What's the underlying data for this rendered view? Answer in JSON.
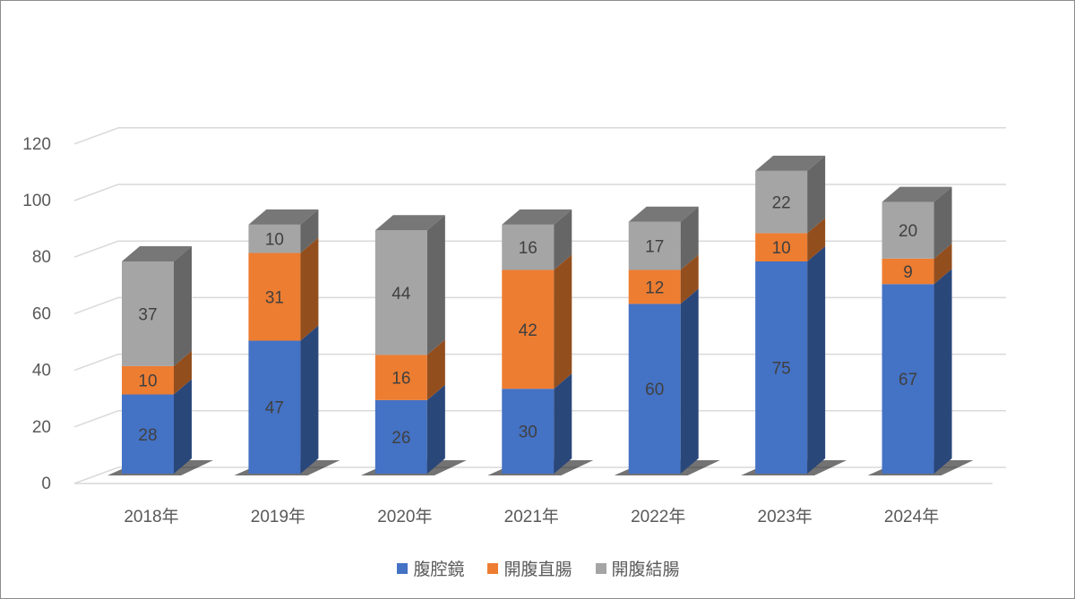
{
  "chart_data": {
    "type": "bar",
    "stacked": true,
    "three_d": true,
    "categories": [
      "2018年",
      "2019年",
      "2020年",
      "2021年",
      "2022年",
      "2023年",
      "2024年"
    ],
    "series": [
      {
        "name": "腹腔鏡",
        "color": "#4472C4",
        "values": [
          28,
          47,
          26,
          30,
          60,
          75,
          67
        ]
      },
      {
        "name": "開腹直腸",
        "color": "#ED7D31",
        "values": [
          10,
          31,
          16,
          42,
          12,
          10,
          9
        ]
      },
      {
        "name": "開腹結腸",
        "color": "#A5A5A5",
        "values": [
          37,
          10,
          44,
          16,
          17,
          22,
          20
        ]
      }
    ],
    "yticks": [
      "0",
      "20",
      "40",
      "60",
      "80",
      "100",
      "120"
    ],
    "ylim": [
      0,
      120
    ],
    "grid": true,
    "legend": "bottom"
  }
}
